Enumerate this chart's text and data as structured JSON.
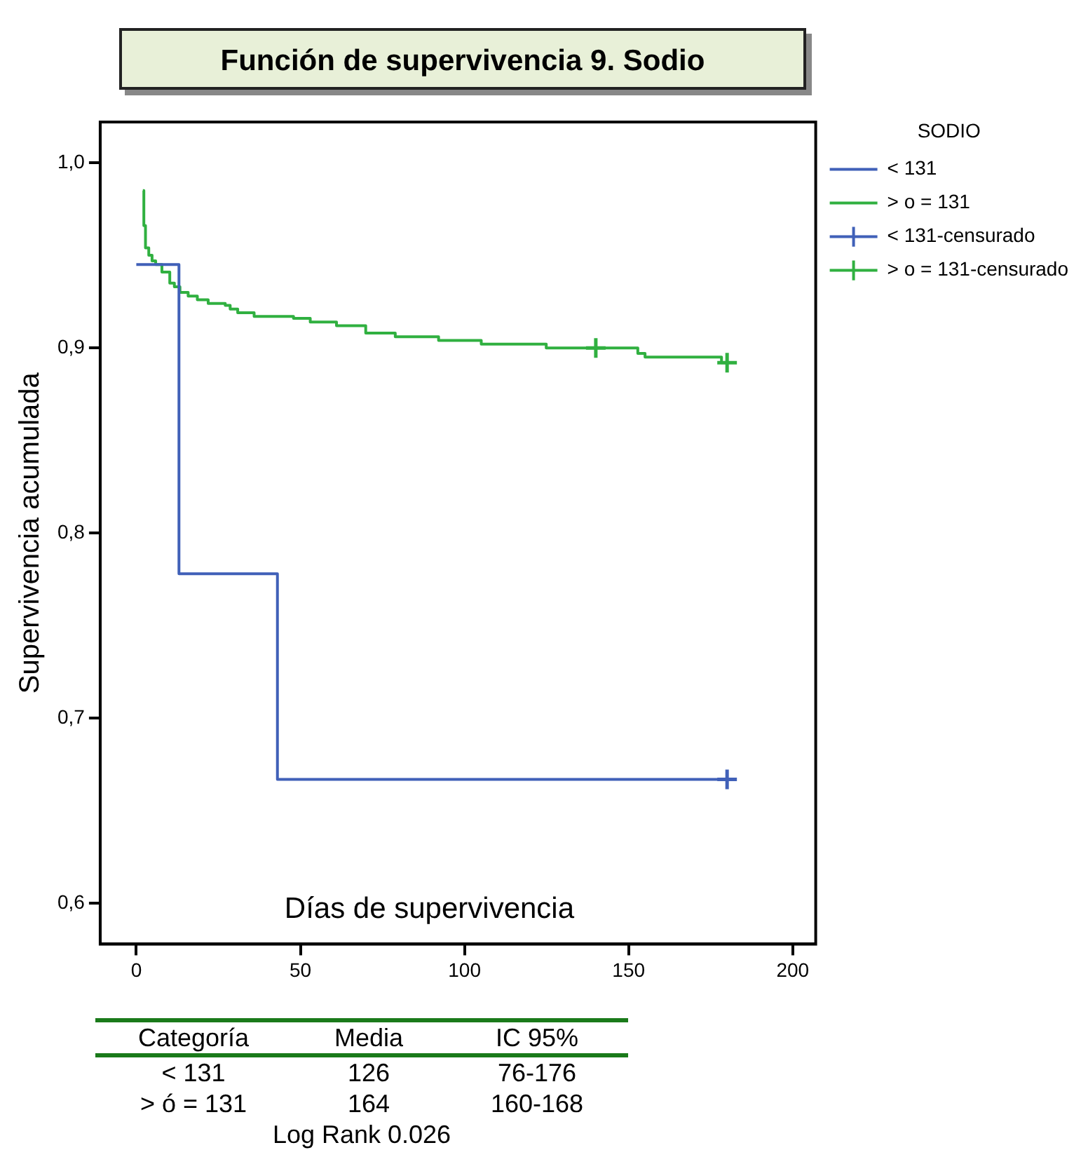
{
  "chart_data": {
    "type": "step",
    "title": "Función de supervivencia 9. Sodio",
    "xlabel": "Días de supervivencia",
    "ylabel": "Supervivencia acumulada",
    "legend_title": "SODIO",
    "legend": "top right",
    "grid": false,
    "xlim": [
      -11,
      207
    ],
    "xticks": [
      0,
      50,
      100,
      150,
      200
    ],
    "ylim": [
      0.578,
      1.022
    ],
    "yticks": [
      {
        "value": 0.6,
        "label": "0,6"
      },
      {
        "value": 0.7,
        "label": "0,7"
      },
      {
        "value": 0.8,
        "label": "0,8"
      },
      {
        "value": 0.9,
        "label": "0,9"
      },
      {
        "value": 1.0,
        "label": "1,0"
      }
    ],
    "series": [
      {
        "name": "< 131",
        "color": "#4060b8",
        "marker": "none",
        "x": [
          0,
          13,
          43,
          180
        ],
        "values": [
          0.945,
          0.778,
          0.667,
          0.667
        ]
      },
      {
        "name": "> o = 131",
        "color": "#30b040",
        "marker": "none",
        "x": [
          2,
          2.3,
          2.8,
          3.8,
          4.8,
          5.9,
          7.8,
          10.2,
          11.6,
          13.3,
          15.8,
          18.6,
          21.9,
          27.1,
          28.6,
          30.9,
          35.9,
          47.9,
          53,
          61,
          69.9,
          78.9,
          92.1,
          105.1,
          124.9,
          152.8,
          155,
          178.3,
          180
        ],
        "values": [
          0.985,
          0.966,
          0.954,
          0.95,
          0.947,
          0.945,
          0.941,
          0.935,
          0.933,
          0.93,
          0.928,
          0.926,
          0.924,
          0.923,
          0.921,
          0.919,
          0.917,
          0.916,
          0.914,
          0.912,
          0.908,
          0.906,
          0.904,
          0.902,
          0.9,
          0.897,
          0.895,
          0.892,
          0.892
        ]
      },
      {
        "name": "< 131-censurado",
        "type": "scatter",
        "color": "#4060b8",
        "marker": "cross",
        "x": [
          180
        ],
        "values": [
          0.667
        ]
      },
      {
        "name": "> o = 131-censurado",
        "type": "scatter",
        "color": "#30b040",
        "marker": "cross",
        "x": [
          140,
          180
        ],
        "values": [
          0.9,
          0.892
        ]
      }
    ],
    "annotations": [
      "Categoría",
      "Media",
      "IC 95%",
      "< 131",
      "126",
      "76-176",
      "> ó = 131",
      "164",
      "160-168",
      "Log Rank 0.026"
    ]
  }
}
